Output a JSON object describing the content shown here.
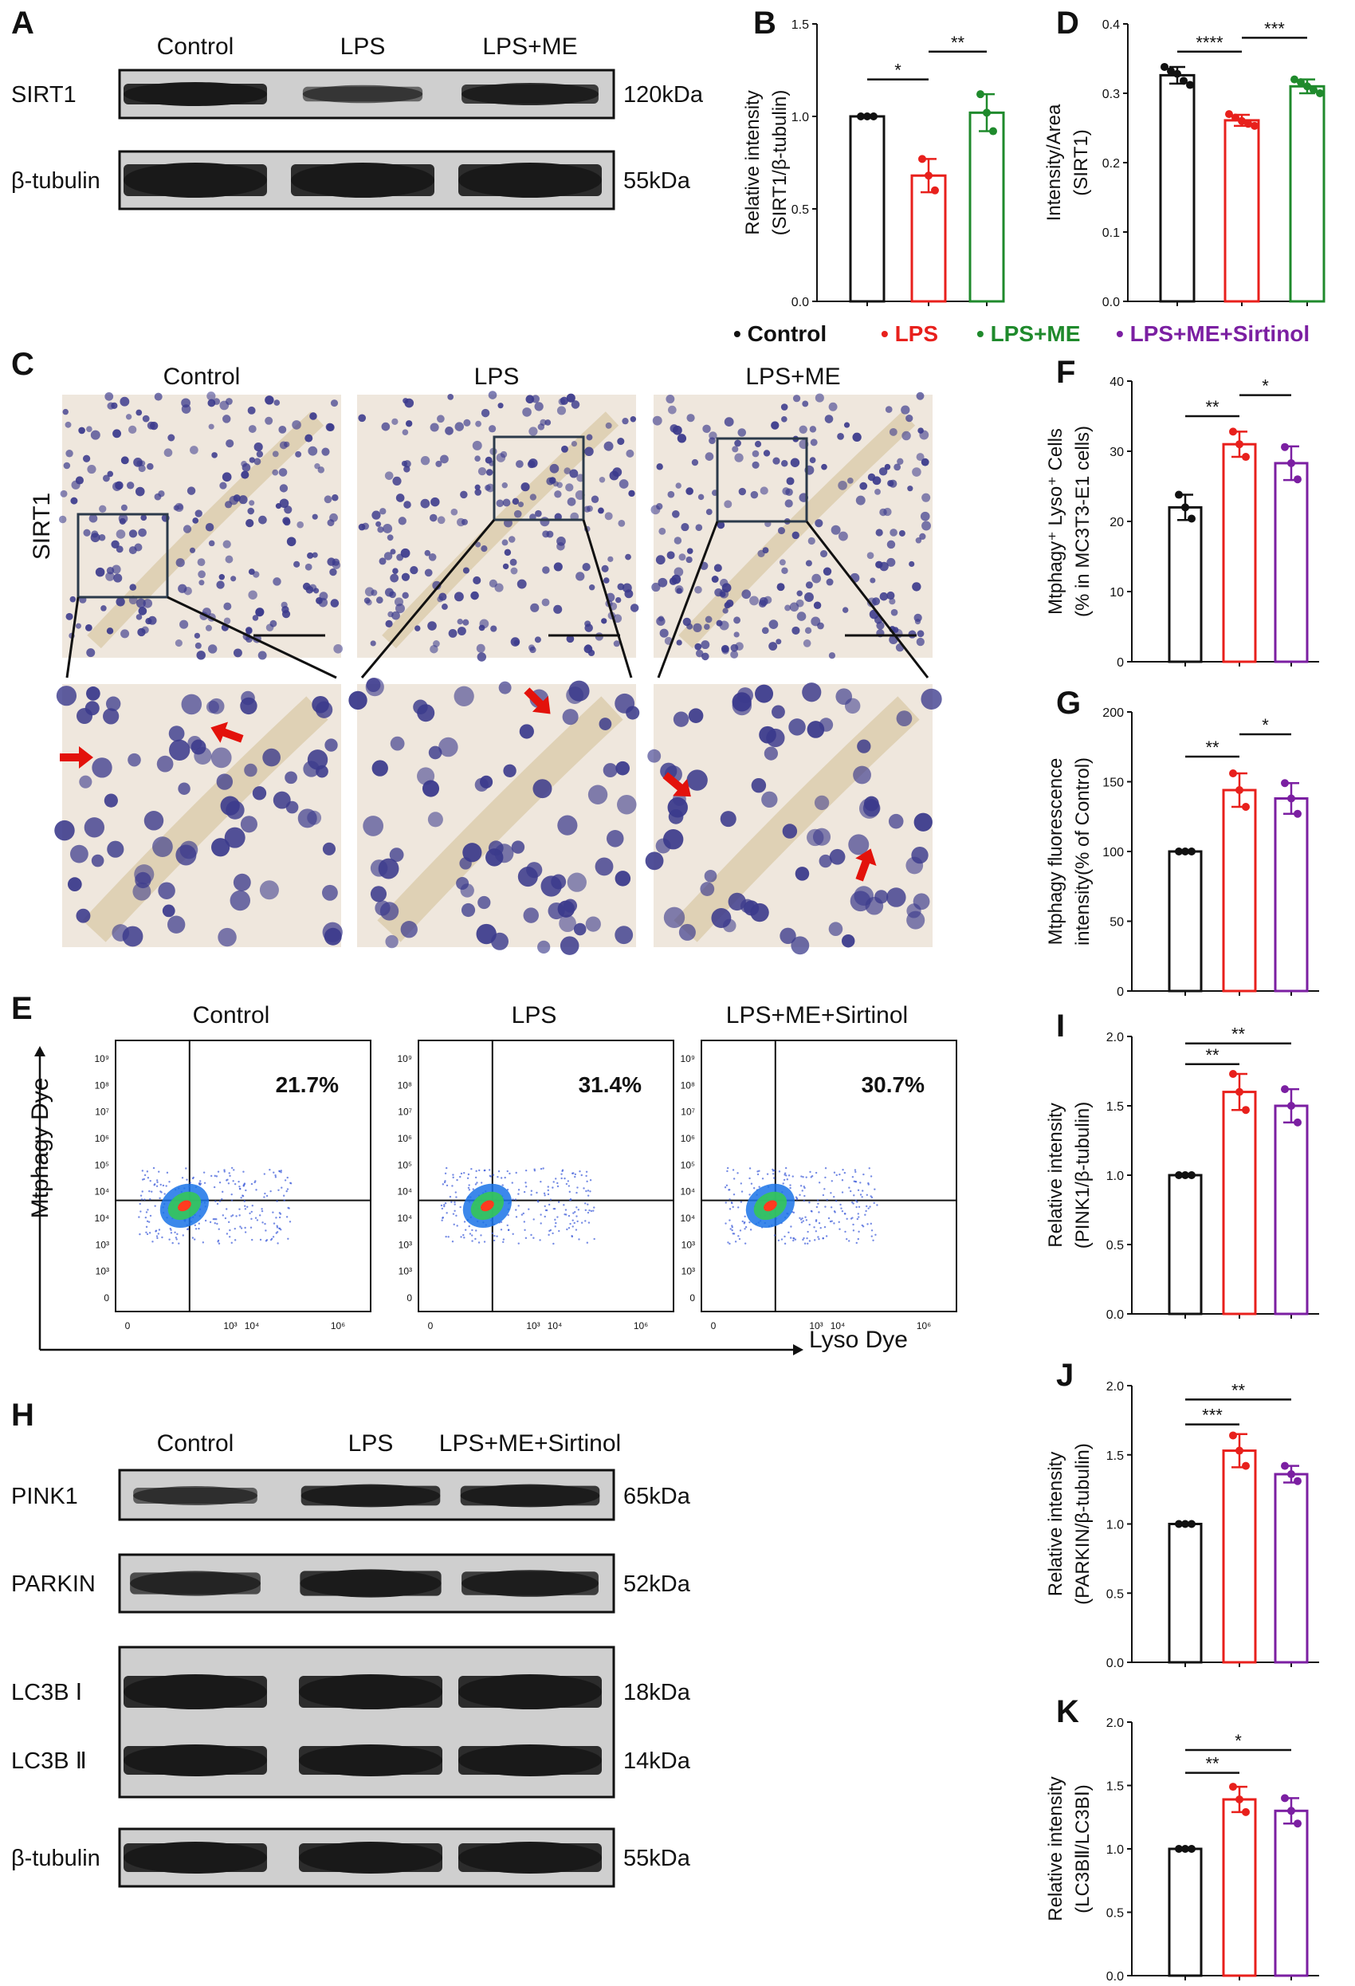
{
  "colors": {
    "control": "#111111",
    "lps": "#e8201c",
    "me": "#1f8a2c",
    "sirt": "#7b1fa2",
    "band": "#1a1a1a",
    "membrane": "#cfcfcf",
    "ihc_bg": "#efe7dd",
    "cell": "#3b3a8c",
    "flow_density_hot": "#ff3b1f",
    "flow_density_mid": "#34c759",
    "flow_density_low": "#1a73e8",
    "flow_scatter": "#3a5ad8",
    "arrow": "#e3120b"
  },
  "panels": {
    "A": {
      "letter": "A",
      "lanes": [
        "Control",
        "LPS",
        "LPS+ME"
      ],
      "bands": [
        {
          "name": "SIRT1",
          "size": "120kDa",
          "intensity": [
            1.0,
            0.45,
            0.85
          ]
        },
        {
          "name": "β-tubulin",
          "size": "55kDa",
          "intensity": [
            1.0,
            1.0,
            1.0
          ]
        }
      ]
    },
    "C": {
      "letter": "C",
      "groups": [
        "Control",
        "LPS",
        "LPS+ME"
      ],
      "stain": "SIRT1"
    },
    "E": {
      "letter": "E",
      "groups": [
        "Control",
        "LPS",
        "LPS+ME+Sirtinol"
      ],
      "percents": [
        "21.7%",
        "31.4%",
        "30.7%"
      ],
      "ylabel": "Mtphagy Dye",
      "xlabel": "Lyso Dye",
      "yticks": [
        "10⁹",
        "10⁸",
        "10⁷",
        "10⁶",
        "10⁵",
        "10⁴",
        "10⁴",
        "10³",
        "10³",
        "0"
      ],
      "xticks": [
        "0",
        "10³",
        "10⁴",
        "10⁶"
      ]
    },
    "H": {
      "letter": "H",
      "lanes": [
        "Control",
        "LPS",
        "LPS+ME+Sirtinol"
      ],
      "bands": [
        {
          "name": "PINK1",
          "size": "65kDa",
          "intensity": [
            0.55,
            0.9,
            0.9
          ]
        },
        {
          "name": "PARKIN",
          "size": "52kDa",
          "intensity": [
            0.7,
            0.95,
            0.85
          ]
        },
        {
          "name": "LC3B Ⅰ",
          "size": "18kDa",
          "intensity": [
            1.0,
            1.0,
            1.0
          ]
        },
        {
          "name": "LC3B Ⅱ",
          "size": "14kDa",
          "intensity": [
            1.0,
            1.0,
            1.0
          ]
        },
        {
          "name": "β-tubulin",
          "size": "55kDa",
          "intensity": [
            1.0,
            1.0,
            1.0
          ]
        }
      ]
    }
  },
  "legend": [
    {
      "text": "• Control",
      "color": "#111111"
    },
    {
      "text": "• LPS",
      "color": "#e8201c"
    },
    {
      "text": "• LPS+ME",
      "color": "#1f8a2c"
    },
    {
      "text": "• LPS+ME+Sirtinol",
      "color": "#7b1fa2"
    }
  ],
  "chart_data": [
    {
      "panel": "B",
      "type": "bar",
      "ylabel": [
        "Relative intensity",
        "(SIRT1/β-tubulin)"
      ],
      "ylim": [
        0,
        1.5
      ],
      "yticks": [
        "0.0",
        "0.5",
        "1.0",
        "1.5"
      ],
      "series": [
        {
          "group": "Control",
          "value": 1.0,
          "err": 0.0,
          "points": [
            1.0,
            1.0,
            1.0
          ]
        },
        {
          "group": "LPS",
          "value": 0.68,
          "err": 0.09,
          "points": [
            0.77,
            0.68,
            0.6
          ]
        },
        {
          "group": "LPS+ME",
          "value": 1.02,
          "err": 0.1,
          "points": [
            1.12,
            1.02,
            0.92
          ]
        }
      ],
      "sig": [
        {
          "from": 0,
          "to": 1,
          "y": 1.2,
          "text": "*"
        },
        {
          "from": 1,
          "to": 2,
          "y": 1.35,
          "text": "**"
        }
      ]
    },
    {
      "panel": "D",
      "type": "bar",
      "ylabel": [
        "Intensity/Area",
        "(SIRT1)"
      ],
      "ylim": [
        0,
        0.4
      ],
      "yticks": [
        "0.0",
        "0.1",
        "0.2",
        "0.3",
        "0.4"
      ],
      "series": [
        {
          "group": "Control",
          "value": 0.326,
          "err": 0.012,
          "points": [
            0.338,
            0.332,
            0.328,
            0.318,
            0.312
          ]
        },
        {
          "group": "LPS",
          "value": 0.261,
          "err": 0.008,
          "points": [
            0.27,
            0.265,
            0.26,
            0.256,
            0.253
          ]
        },
        {
          "group": "LPS+ME",
          "value": 0.31,
          "err": 0.01,
          "points": [
            0.32,
            0.316,
            0.31,
            0.305,
            0.3
          ]
        }
      ],
      "sig": [
        {
          "from": 0,
          "to": 1,
          "y": 0.36,
          "text": "****"
        },
        {
          "from": 1,
          "to": 2,
          "y": 0.38,
          "text": "***"
        }
      ]
    },
    {
      "panel": "F",
      "type": "bar",
      "ylabel": [
        "Mtphagy⁺ Lyso⁺ Cells",
        "(% in MC3T3-E1 cells)"
      ],
      "ylim": [
        0,
        40
      ],
      "yticks": [
        "0",
        "10",
        "20",
        "30",
        "40"
      ],
      "series": [
        {
          "group": "Control",
          "value": 22,
          "err": 1.8,
          "points": [
            23.8,
            22,
            20.4
          ]
        },
        {
          "group": "LPS",
          "value": 31,
          "err": 1.8,
          "points": [
            32.8,
            31,
            29.2
          ]
        },
        {
          "group": "LPS+ME+Sirtinol",
          "value": 28.3,
          "err": 2.4,
          "points": [
            30.6,
            28.3,
            26
          ]
        }
      ],
      "sig": [
        {
          "from": 0,
          "to": 1,
          "y": 35,
          "text": "**"
        },
        {
          "from": 1,
          "to": 2,
          "y": 38,
          "text": "*"
        }
      ]
    },
    {
      "panel": "G",
      "type": "bar",
      "ylabel": [
        "Mtphagy fluorescence",
        "intensity(% of Control)"
      ],
      "ylim": [
        0,
        200
      ],
      "yticks": [
        "0",
        "50",
        "100",
        "150",
        "200"
      ],
      "series": [
        {
          "group": "Control",
          "value": 100,
          "err": 0,
          "points": [
            100,
            100,
            100
          ]
        },
        {
          "group": "LPS",
          "value": 144,
          "err": 12,
          "points": [
            156,
            144,
            132
          ]
        },
        {
          "group": "LPS+ME+Sirtinol",
          "value": 138,
          "err": 11,
          "points": [
            149,
            138,
            127
          ]
        }
      ],
      "sig": [
        {
          "from": 0,
          "to": 1,
          "y": 168,
          "text": "**"
        },
        {
          "from": 1,
          "to": 2,
          "y": 184,
          "text": "*"
        }
      ]
    },
    {
      "panel": "I",
      "type": "bar",
      "ylabel": [
        "Relative intensity",
        "(PINK1/β-tubulin)"
      ],
      "ylim": [
        0,
        2.0
      ],
      "yticks": [
        "0.0",
        "0.5",
        "1.0",
        "1.5",
        "2.0"
      ],
      "series": [
        {
          "group": "Control",
          "value": 1.0,
          "err": 0,
          "points": [
            1.0,
            1.0,
            1.0
          ]
        },
        {
          "group": "LPS",
          "value": 1.6,
          "err": 0.13,
          "points": [
            1.73,
            1.6,
            1.47
          ]
        },
        {
          "group": "LPS+ME+Sirtinol",
          "value": 1.5,
          "err": 0.12,
          "points": [
            1.62,
            1.5,
            1.38
          ]
        }
      ],
      "sig": [
        {
          "from": 0,
          "to": 1,
          "y": 1.8,
          "text": "**"
        },
        {
          "from": 0,
          "to": 2,
          "y": 1.95,
          "text": "**"
        }
      ]
    },
    {
      "panel": "J",
      "type": "bar",
      "ylabel": [
        "Relative intensity",
        "(PARKIN/β-tubulin)"
      ],
      "ylim": [
        0,
        2.0
      ],
      "yticks": [
        "0.0",
        "0.5",
        "1.0",
        "1.5",
        "2.0"
      ],
      "series": [
        {
          "group": "Control",
          "value": 1.0,
          "err": 0,
          "points": [
            1.0,
            1.0,
            1.0
          ]
        },
        {
          "group": "LPS",
          "value": 1.53,
          "err": 0.12,
          "points": [
            1.64,
            1.53,
            1.42
          ]
        },
        {
          "group": "LPS+ME+Sirtinol",
          "value": 1.36,
          "err": 0.06,
          "points": [
            1.42,
            1.36,
            1.31
          ]
        }
      ],
      "sig": [
        {
          "from": 0,
          "to": 1,
          "y": 1.72,
          "text": "***"
        },
        {
          "from": 0,
          "to": 2,
          "y": 1.9,
          "text": "**"
        }
      ]
    },
    {
      "panel": "K",
      "type": "bar",
      "ylabel": [
        "Relative intensity",
        "(LC3BⅡ/LC3BⅠ)"
      ],
      "ylim": [
        0,
        2.0
      ],
      "yticks": [
        "0.0",
        "0.5",
        "1.0",
        "1.5",
        "2.0"
      ],
      "series": [
        {
          "group": "Control",
          "value": 1.0,
          "err": 0,
          "points": [
            1.0,
            1.0,
            1.0
          ]
        },
        {
          "group": "LPS",
          "value": 1.39,
          "err": 0.1,
          "points": [
            1.49,
            1.39,
            1.29
          ]
        },
        {
          "group": "LPS+ME+Sirtinol",
          "value": 1.3,
          "err": 0.1,
          "points": [
            1.4,
            1.3,
            1.2
          ]
        }
      ],
      "sig": [
        {
          "from": 0,
          "to": 1,
          "y": 1.6,
          "text": "**"
        },
        {
          "from": 0,
          "to": 2,
          "y": 1.78,
          "text": "*"
        }
      ]
    }
  ]
}
